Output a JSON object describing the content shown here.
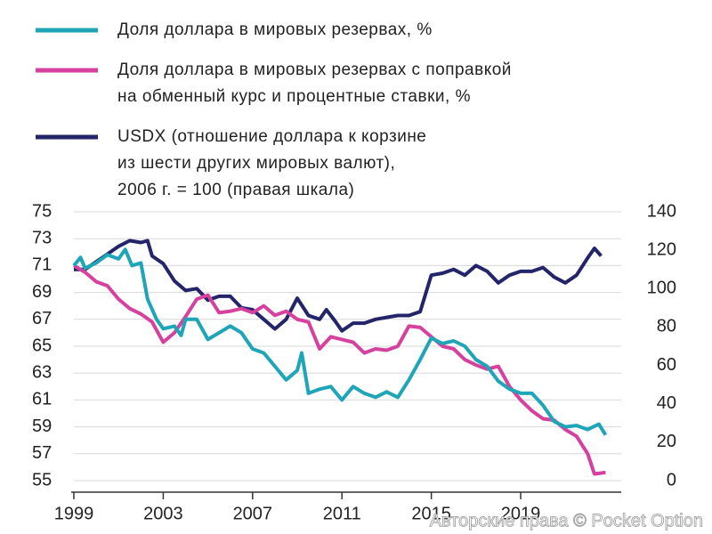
{
  "chart_data": {
    "type": "line",
    "series": [
      {
        "name": [
          "Доля доллара в мировых резервах, %"
        ],
        "color": "#1ea5b8",
        "x": [
          1999,
          1999.3,
          1999.5,
          2000,
          2000.5,
          2001,
          2001.3,
          2001.6,
          2002,
          2002.3,
          2002.7,
          2003,
          2003.5,
          2003.8,
          2004,
          2004.5,
          2005,
          2005.5,
          2006,
          2006.5,
          2007,
          2007.5,
          2008,
          2008.5,
          2009,
          2009.2,
          2009.5,
          2010,
          2010.5,
          2011,
          2011.5,
          2012,
          2012.5,
          2013,
          2013.5,
          2014,
          2014.5,
          2015,
          2015.5,
          2016,
          2016.5,
          2017,
          2017.5,
          2018,
          2018.5,
          2019,
          2019.5,
          2020,
          2020.5,
          2021,
          2021.5,
          2022,
          2022.5,
          2022.8
        ],
        "values": [
          71,
          71.6,
          70.8,
          71.2,
          71.8,
          71.5,
          72.2,
          71,
          71.2,
          68.5,
          67,
          66.3,
          66.5,
          65.8,
          67,
          67,
          65.5,
          66,
          66.5,
          66,
          64.8,
          64.5,
          63.5,
          62.5,
          63.2,
          64.5,
          61.5,
          61.8,
          62,
          61,
          62,
          61.5,
          61.2,
          61.6,
          61.2,
          62.5,
          64,
          65.6,
          65.2,
          65.4,
          65,
          64,
          63.5,
          62.4,
          61.8,
          61.5,
          61.5,
          60.6,
          59.4,
          59,
          59.1,
          58.8,
          59.2,
          58.4
        ]
      },
      {
        "name": [
          "Доля доллара в мировых резервах с поправкой",
          "на обменный курс и процентные ставки, %"
        ],
        "color": "#d6409f",
        "x": [
          1999,
          1999.5,
          2000,
          2000.5,
          2001,
          2001.5,
          2002,
          2002.5,
          2003,
          2003.5,
          2004,
          2004.5,
          2005,
          2005.5,
          2006,
          2006.5,
          2007,
          2007.5,
          2008,
          2008.5,
          2009,
          2009.5,
          2010,
          2010.5,
          2011,
          2011.5,
          2012,
          2012.5,
          2013,
          2013.5,
          2014,
          2014.5,
          2015,
          2015.5,
          2016,
          2016.5,
          2017,
          2017.5,
          2018,
          2018.5,
          2019,
          2019.5,
          2020,
          2020.5,
          2021,
          2021.5,
          2022,
          2022.3,
          2022.8
        ],
        "values": [
          71,
          70.5,
          69.8,
          69.5,
          68.5,
          67.8,
          67.4,
          66.8,
          65.3,
          66,
          67.2,
          68.5,
          68.8,
          67.5,
          67.6,
          67.8,
          67.5,
          68,
          67.3,
          67.6,
          67,
          66.8,
          64.8,
          65.7,
          65.5,
          65.3,
          64.5,
          64.8,
          64.7,
          65,
          66.5,
          66.4,
          65.7,
          65,
          64.8,
          64,
          63.6,
          63.3,
          63.5,
          62,
          61,
          60.2,
          59.6,
          59.5,
          58.8,
          58.3,
          57,
          55.5,
          55.6
        ]
      },
      {
        "name": [
          "USDX (отношение доллара к корзине",
          "из шести других мировых валют),",
          "2006 г. = 100 (правая шкала)"
        ],
        "color": "#23246a",
        "axis": "y2",
        "x": [
          1999,
          1999.5,
          2000,
          2000.5,
          2001,
          2001.5,
          2002,
          2002.3,
          2002.5,
          2003,
          2003.5,
          2004,
          2004.5,
          2005,
          2005.5,
          2006,
          2006.5,
          2007,
          2007.5,
          2008,
          2008.5,
          2009,
          2009.5,
          2010,
          2010.3,
          2010.7,
          2011,
          2011.5,
          2012,
          2012.5,
          2013,
          2013.5,
          2014,
          2014.5,
          2015,
          2015.5,
          2016,
          2016.5,
          2017,
          2017.5,
          2018,
          2018.5,
          2019,
          2019.5,
          2020,
          2020.5,
          2021,
          2021.5,
          2022,
          2022.3,
          2022.6
        ],
        "values": [
          110,
          110,
          114,
          118,
          122,
          125,
          124,
          125,
          117,
          113,
          104,
          99,
          100,
          94,
          96,
          96,
          90,
          89,
          84,
          79,
          84,
          95,
          86,
          84,
          89,
          83,
          78,
          82,
          82,
          84,
          85,
          86,
          86,
          88,
          107,
          108,
          110,
          107,
          112,
          109,
          103,
          107,
          109,
          109,
          111,
          106,
          103,
          107,
          116,
          121,
          117
        ]
      }
    ],
    "xlim": [
      1999,
      2023.5
    ],
    "xticks": [
      1999,
      2003,
      2007,
      2011,
      2015,
      2019
    ],
    "ylim": [
      55,
      75
    ],
    "yticks": [
      75,
      73,
      71,
      69,
      67,
      65,
      63,
      61,
      59,
      57,
      55
    ],
    "y2lim": [
      0,
      140
    ],
    "y2ticks": [
      140,
      120,
      100,
      80,
      60,
      40,
      20,
      0
    ],
    "grid": true,
    "watermark": "Авторские права © Pocket Option"
  }
}
